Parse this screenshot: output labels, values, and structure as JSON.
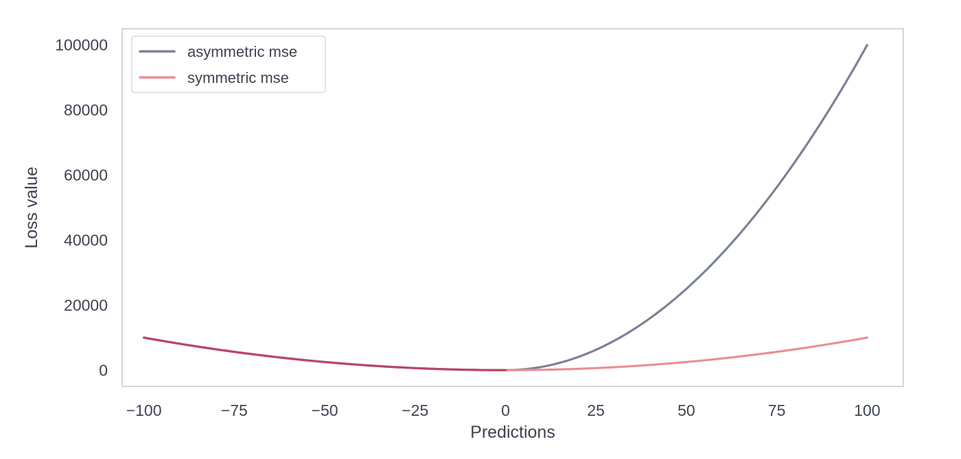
{
  "chart_data": {
    "type": "line",
    "title": "",
    "xlabel": "Predictions",
    "ylabel": "Loss value",
    "xlim": [
      -106,
      110
    ],
    "ylim": [
      -5000,
      105000
    ],
    "xticks": [
      -100,
      -75,
      -50,
      -25,
      0,
      25,
      50,
      75,
      100
    ],
    "xtick_labels": [
      "−100",
      "−75",
      "−50",
      "−25",
      "0",
      "25",
      "50",
      "75",
      "100"
    ],
    "yticks": [
      0,
      20000,
      40000,
      60000,
      80000,
      100000
    ],
    "ytick_labels": [
      "0",
      "20000",
      "40000",
      "60000",
      "80000",
      "100000"
    ],
    "grid": false,
    "legend_position": "top-left",
    "x": [
      -100,
      -90,
      -80,
      -70,
      -60,
      -50,
      -40,
      -30,
      -20,
      -10,
      0,
      10,
      20,
      30,
      40,
      50,
      60,
      70,
      80,
      90,
      100
    ],
    "series": [
      {
        "name": "asymmetric mse",
        "color": "#7a8294",
        "values": [
          10000,
          8100,
          6400,
          4900,
          3600,
          2500,
          1600,
          900,
          400,
          100,
          0,
          1000,
          4000,
          9000,
          16000,
          25000,
          36000,
          49000,
          64000,
          81000,
          100000
        ]
      },
      {
        "name": "symmetric mse",
        "color": "#ec8d96",
        "values": [
          10000,
          8100,
          6400,
          4900,
          3600,
          2500,
          1600,
          900,
          400,
          100,
          0,
          100,
          400,
          900,
          1600,
          2500,
          3600,
          4900,
          6400,
          8100,
          10000
        ]
      }
    ],
    "overlap_color": "#b94764"
  }
}
